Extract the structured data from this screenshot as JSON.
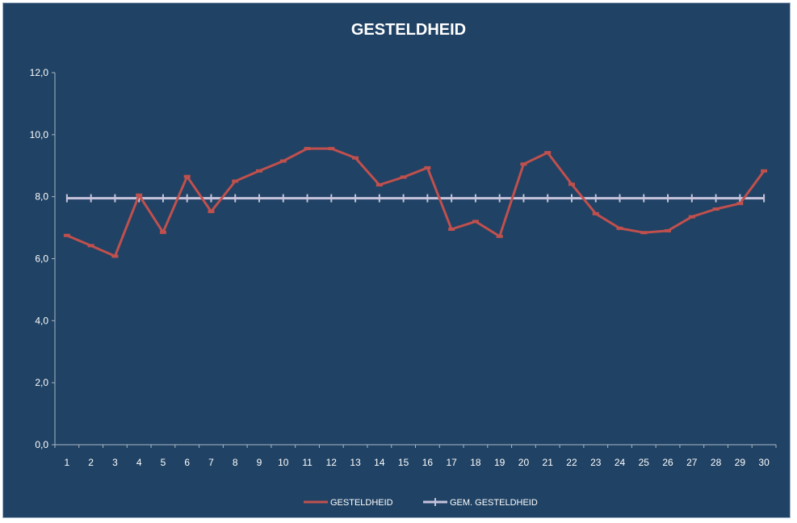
{
  "chart_data": {
    "type": "line",
    "title": "GESTELDHEID",
    "xlabel": "",
    "ylabel": "",
    "ylim": [
      0,
      12
    ],
    "ytick_labels": [
      "0,0",
      "2,0",
      "4,0",
      "6,0",
      "8,0",
      "10,0",
      "12,0"
    ],
    "categories": [
      "1",
      "2",
      "3",
      "4",
      "5",
      "6",
      "7",
      "8",
      "9",
      "10",
      "11",
      "12",
      "13",
      "14",
      "15",
      "16",
      "17",
      "18",
      "19",
      "20",
      "21",
      "22",
      "23",
      "24",
      "25",
      "26",
      "27",
      "28",
      "29",
      "30"
    ],
    "series": [
      {
        "name": "GESTELDHEID",
        "color": "#c0504d",
        "marker": "dash",
        "values": [
          6.75,
          6.42,
          6.08,
          8.05,
          6.85,
          8.65,
          7.52,
          8.5,
          8.83,
          9.15,
          9.55,
          9.55,
          9.25,
          8.38,
          8.63,
          8.93,
          6.95,
          7.2,
          6.72,
          9.05,
          9.42,
          8.4,
          7.45,
          6.98,
          6.84,
          6.9,
          7.35,
          7.6,
          7.78,
          8.83
        ]
      },
      {
        "name": "GEM. GESTELDHEID",
        "color": "#c6c3dc",
        "marker": "plus",
        "values": [
          7.95,
          7.95,
          7.95,
          7.95,
          7.95,
          7.95,
          7.95,
          7.95,
          7.95,
          7.95,
          7.95,
          7.95,
          7.95,
          7.95,
          7.95,
          7.95,
          7.95,
          7.95,
          7.95,
          7.95,
          7.95,
          7.95,
          7.95,
          7.95,
          7.95,
          7.95,
          7.95,
          7.95,
          7.95,
          7.95
        ]
      }
    ],
    "grid": false,
    "legend_position": "bottom"
  }
}
